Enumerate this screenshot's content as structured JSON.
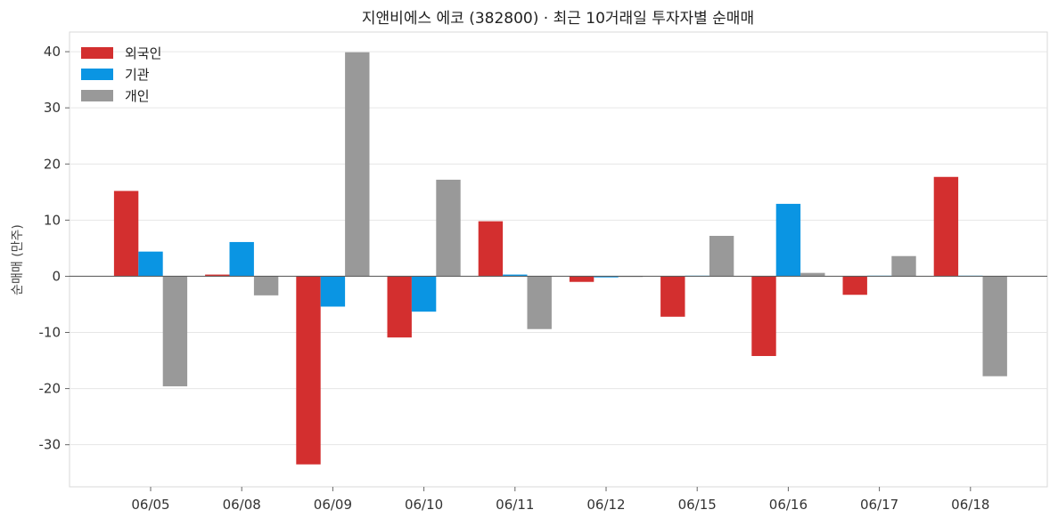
{
  "chart_data": {
    "type": "bar",
    "title": "지앤비에스 에코 (382800) · 최근 10거래일 투자자별 순매매",
    "xlabel": "",
    "ylabel": "순매매 (만주)",
    "categories": [
      "06/05",
      "06/08",
      "06/09",
      "06/10",
      "06/11",
      "06/12",
      "06/15",
      "06/16",
      "06/17",
      "06/18"
    ],
    "series": [
      {
        "name": "외국인",
        "color": "#d32f2f",
        "values": [
          15.2,
          0.3,
          -33.5,
          -10.9,
          9.8,
          -1.0,
          -7.2,
          -14.2,
          -3.3,
          17.7
        ]
      },
      {
        "name": "기관",
        "color": "#0a95e3",
        "values": [
          4.4,
          6.1,
          -5.4,
          -6.3,
          0.3,
          -0.2,
          0.1,
          12.9,
          0.1,
          0.1
        ]
      },
      {
        "name": "개인",
        "color": "#999999",
        "values": [
          -19.6,
          -3.4,
          39.9,
          17.2,
          -9.4,
          -0.1,
          7.2,
          0.6,
          3.6,
          -17.8
        ]
      }
    ],
    "ylim": [
      -37.5,
      43.5
    ],
    "yticks": [
      -30,
      -20,
      -10,
      0,
      10,
      20,
      30,
      40
    ],
    "grid": true,
    "legend_position": "top-left"
  }
}
